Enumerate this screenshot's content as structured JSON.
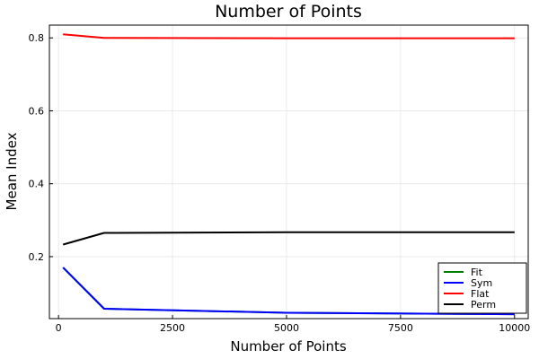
{
  "chart_data": {
    "type": "line",
    "title": "Number of Points",
    "xlabel": "Number of Points",
    "ylabel": "Mean Index",
    "xlim": [
      -200,
      10300
    ],
    "ylim": [
      0.03,
      0.835
    ],
    "xticks": [
      0,
      2500,
      5000,
      7500,
      10000
    ],
    "xtick_labels": [
      "0",
      "2500",
      "5000",
      "7500",
      "10000"
    ],
    "yticks": [
      0.2,
      0.4,
      0.6,
      0.8
    ],
    "ytick_labels": [
      "0.2",
      "0.4",
      "0.6",
      "0.8"
    ],
    "grid": true,
    "legend_position": "bottom-right",
    "series": [
      {
        "name": "Fit",
        "color": "#008000",
        "x": [
          100,
          1000,
          5000,
          10000
        ],
        "y": [
          0.17,
          0.057,
          0.046,
          0.042
        ]
      },
      {
        "name": "Sym",
        "color": "#0000ff",
        "x": [
          100,
          1000,
          5000,
          10000
        ],
        "y": [
          0.17,
          0.057,
          0.046,
          0.042
        ]
      },
      {
        "name": "Flat",
        "color": "#ff0000",
        "x": [
          100,
          1000,
          5000,
          10000
        ],
        "y": [
          0.81,
          0.8,
          0.799,
          0.799
        ]
      },
      {
        "name": "Perm",
        "color": "#000000",
        "x": [
          100,
          1000,
          5000,
          10000
        ],
        "y": [
          0.233,
          0.265,
          0.267,
          0.267
        ]
      }
    ]
  }
}
